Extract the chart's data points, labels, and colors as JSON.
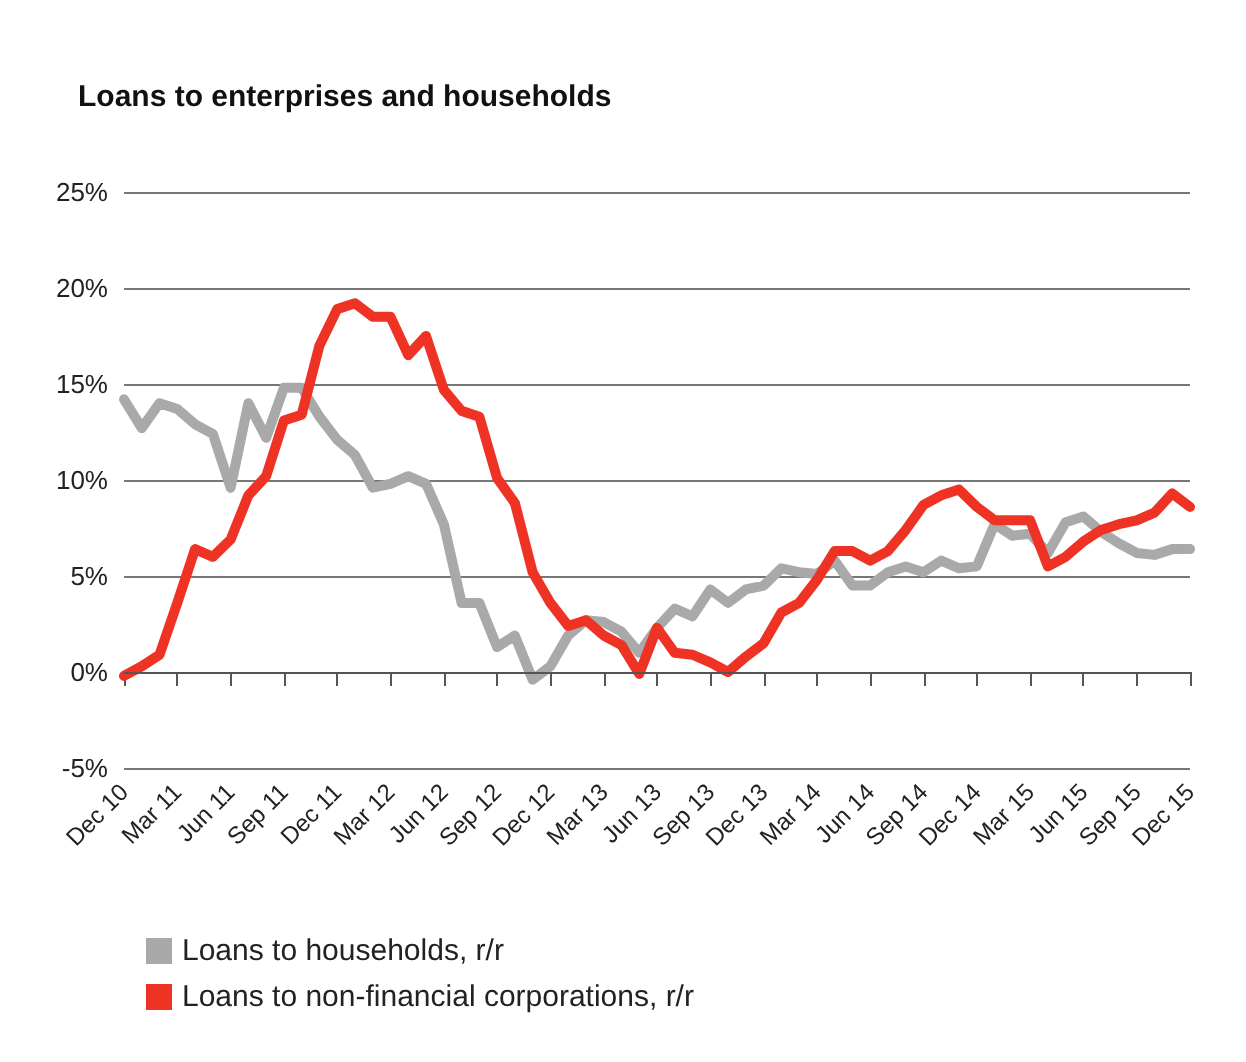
{
  "chart_data": {
    "type": "line",
    "title": "Loans to enterprises and households",
    "categories": [
      "Dec 10",
      null,
      null,
      "Mar 11",
      null,
      null,
      "Jun 11",
      null,
      null,
      "Sep 11",
      null,
      null,
      "Dec 11",
      null,
      null,
      "Mar 12",
      null,
      null,
      "Jun 12",
      null,
      null,
      "Sep 12",
      null,
      null,
      "Dec 12",
      null,
      null,
      "Mar 13",
      null,
      null,
      "Jun 13",
      null,
      null,
      "Sep 13",
      null,
      null,
      "Dec 13",
      null,
      null,
      "Mar 14",
      null,
      null,
      "Jun 14",
      null,
      null,
      "Sep 14",
      null,
      null,
      "Dec 14",
      null,
      null,
      "Mar 15",
      null,
      null,
      "Jun 15",
      null,
      null,
      "Sep 15",
      null,
      null,
      "Dec 15"
    ],
    "series": [
      {
        "name": "Loans to households, r/r",
        "color": "#a9a9a9",
        "values": [
          14.2,
          12.7,
          14.0,
          13.7,
          12.9,
          12.4,
          9.6,
          14.0,
          12.2,
          14.8,
          14.8,
          13.3,
          12.1,
          11.3,
          9.6,
          9.8,
          10.2,
          9.8,
          7.7,
          3.6,
          3.6,
          1.3,
          1.9,
          -0.4,
          0.3,
          1.9,
          2.7,
          2.6,
          2.1,
          1.0,
          2.3,
          3.3,
          2.9,
          4.3,
          3.6,
          4.3,
          4.5,
          5.4,
          5.2,
          5.1,
          5.8,
          4.5,
          4.5,
          5.2,
          5.5,
          5.2,
          5.8,
          5.4,
          5.5,
          7.7,
          7.1,
          7.2,
          6.2,
          7.8,
          8.1,
          7.3,
          6.7,
          6.2,
          6.1,
          6.4,
          6.4
        ]
      },
      {
        "name": "Loans to non-financial corporations, r/r",
        "color": "#ee3224",
        "values": [
          -0.2,
          0.3,
          0.9,
          3.6,
          6.4,
          6.0,
          6.9,
          9.2,
          10.2,
          13.1,
          13.4,
          17.0,
          18.9,
          19.2,
          18.5,
          18.5,
          16.5,
          17.5,
          14.7,
          13.6,
          13.3,
          10.1,
          8.8,
          5.2,
          3.6,
          2.4,
          2.7,
          1.9,
          1.4,
          -0.1,
          2.3,
          1.0,
          0.9,
          0.5,
          0.0,
          0.8,
          1.5,
          3.1,
          3.6,
          4.8,
          6.3,
          6.3,
          5.8,
          6.3,
          7.4,
          8.7,
          9.2,
          9.5,
          8.6,
          7.9,
          7.9,
          7.9,
          5.5,
          6.0,
          6.8,
          7.4,
          7.7,
          7.9,
          8.3,
          9.3,
          8.6
        ]
      }
    ],
    "ylim": [
      -5,
      25
    ],
    "yticks": [
      {
        "value": -5,
        "label": "-5%"
      },
      {
        "value": 0,
        "label": "0%"
      },
      {
        "value": 5,
        "label": "5%"
      },
      {
        "value": 10,
        "label": "10%"
      },
      {
        "value": 15,
        "label": "15%"
      },
      {
        "value": 20,
        "label": "20%"
      },
      {
        "value": 25,
        "label": "25%"
      }
    ],
    "grid": "y",
    "legend": "bottom left",
    "marker": "none",
    "line_style": "solid"
  }
}
